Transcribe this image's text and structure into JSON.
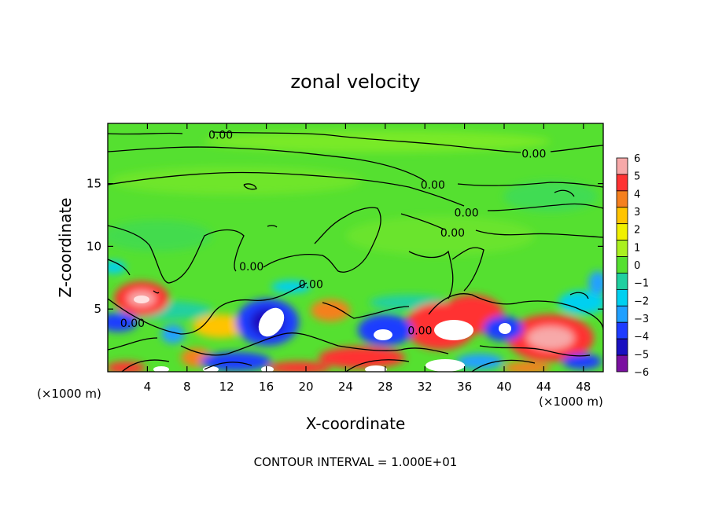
{
  "chart_data": {
    "type": "heatmap",
    "title": "zonal velocity",
    "xlabel": "X-coordinate",
    "ylabel": "Z-coordinate",
    "x_unit_left": "(×1000 m)",
    "x_unit_right": "(×1000 m)",
    "xlim": [
      0,
      50
    ],
    "ylim": [
      0,
      19.8
    ],
    "x_ticks": [
      4,
      8,
      12,
      16,
      20,
      24,
      28,
      32,
      36,
      40,
      44,
      48
    ],
    "y_ticks": [
      5,
      10,
      15
    ],
    "colorbar": {
      "min": -6,
      "max": 6,
      "labels": [
        "6",
        "5",
        "4",
        "3",
        "2",
        "1",
        "0",
        "−1",
        "−2",
        "−3",
        "−4",
        "−5",
        "−6"
      ],
      "colors": [
        "#f7a9a9",
        "#ff3333",
        "#f5801f",
        "#ffc400",
        "#f0f000",
        "#aaf020",
        "#55e030",
        "#20d0a0",
        "#00d0f0",
        "#20a0ff",
        "#1e3cff",
        "#1a10c0",
        "#7a10a0"
      ]
    },
    "contour_labels": [
      {
        "text": "0.00",
        "x": 11.4,
        "z": 18.9
      },
      {
        "text": "0.00",
        "x": 43.0,
        "z": 17.4
      },
      {
        "text": "0.00",
        "x": 32.8,
        "z": 14.9
      },
      {
        "text": "0.00",
        "x": 36.2,
        "z": 12.7
      },
      {
        "text": "0.00",
        "x": 34.8,
        "z": 11.1
      },
      {
        "text": "0.00",
        "x": 14.5,
        "z": 8.4
      },
      {
        "text": "0.00",
        "x": 20.5,
        "z": 7.0
      },
      {
        "text": "0.00",
        "x": 2.5,
        "z": 3.9
      },
      {
        "text": "0.00",
        "x": 31.5,
        "z": 3.3
      }
    ],
    "footnote": "CONTOUR INTERVAL = 1.000E+01"
  }
}
